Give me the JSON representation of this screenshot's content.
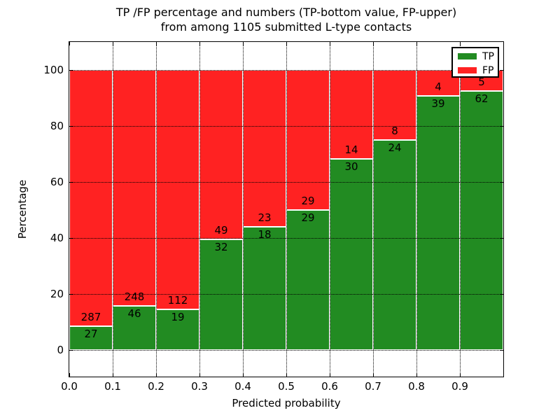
{
  "figure": {
    "title_line1": "TP /FP percentage and numbers (TP-bottom value, FP-upper)",
    "title_line2": "from among 1105 submitted L-type contacts"
  },
  "chart_data": {
    "type": "bar",
    "stacked": true,
    "title": "TP /FP percentage and numbers (TP-bottom value, FP-upper) from among 1105 submitted L-type contacts",
    "xlabel": "Predicted probability",
    "ylabel": "Percentage",
    "xlim": [
      0.0,
      1.0
    ],
    "ylim": [
      -9.5,
      110
    ],
    "grid": true,
    "grid_style": "dotted",
    "total_contacts": 1105,
    "x_tick_values": [
      0.0,
      0.1,
      0.2,
      0.3,
      0.4,
      0.5,
      0.6,
      0.7,
      0.8,
      0.9
    ],
    "x_tick_labels": [
      "0.0",
      "0.1",
      "0.2",
      "0.3",
      "0.4",
      "0.5",
      "0.6",
      "0.7",
      "0.8",
      "0.9"
    ],
    "y_tick_values": [
      0,
      20,
      40,
      60,
      80,
      100
    ],
    "y_tick_labels": [
      "0",
      "20",
      "40",
      "60",
      "80",
      "100"
    ],
    "legend": {
      "position": "upper right",
      "entries": [
        {
          "label": "TP",
          "color": "#228B22"
        },
        {
          "label": "FP",
          "color": "#FF2222"
        }
      ]
    },
    "series": [
      {
        "name": "TP",
        "color": "#228B22",
        "counts": [
          27,
          46,
          19,
          32,
          18,
          29,
          30,
          24,
          39,
          62
        ]
      },
      {
        "name": "FP",
        "color": "#FF2222",
        "counts": [
          287,
          248,
          112,
          49,
          23,
          29,
          14,
          8,
          4,
          5
        ]
      }
    ],
    "bins": [
      {
        "x0": 0.0,
        "x1": 0.1,
        "tp": 27,
        "fp": 287,
        "tp_pct": 8.6
      },
      {
        "x0": 0.1,
        "x1": 0.2,
        "tp": 46,
        "fp": 248,
        "tp_pct": 15.6
      },
      {
        "x0": 0.2,
        "x1": 0.3,
        "tp": 19,
        "fp": 112,
        "tp_pct": 14.5
      },
      {
        "x0": 0.3,
        "x1": 0.4,
        "tp": 32,
        "fp": 49,
        "tp_pct": 39.5
      },
      {
        "x0": 0.4,
        "x1": 0.5,
        "tp": 18,
        "fp": 23,
        "tp_pct": 43.9
      },
      {
        "x0": 0.5,
        "x1": 0.6,
        "tp": 29,
        "fp": 29,
        "tp_pct": 50.0
      },
      {
        "x0": 0.6,
        "x1": 0.7,
        "tp": 30,
        "fp": 14,
        "tp_pct": 68.2
      },
      {
        "x0": 0.7,
        "x1": 0.8,
        "tp": 24,
        "fp": 8,
        "tp_pct": 75.0
      },
      {
        "x0": 0.8,
        "x1": 0.9,
        "tp": 39,
        "fp": 4,
        "tp_pct": 90.7
      },
      {
        "x0": 0.9,
        "x1": 1.0,
        "tp": 62,
        "fp": 5,
        "tp_pct": 92.5
      }
    ],
    "bar_edge_color": "#ffffff"
  },
  "colors": {
    "background": "#ffffff",
    "axes": "#000000",
    "grid": "#000000",
    "tp": "#228B22",
    "fp": "#FF2222"
  }
}
